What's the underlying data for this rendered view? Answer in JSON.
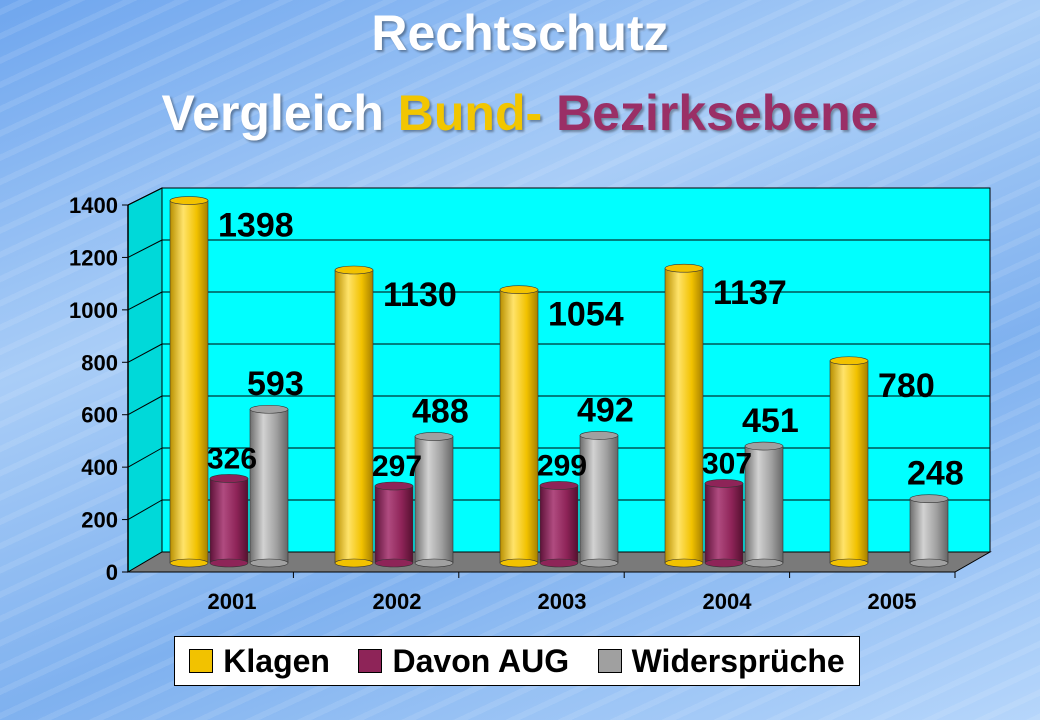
{
  "title": {
    "line1": "Rechtschutz",
    "line2": [
      {
        "text": "Vergleich ",
        "color": "#ffffff"
      },
      {
        "text": "Bund-",
        "color": "#f2c600"
      },
      {
        "text": " Bezirksebene",
        "color": "#9a2f66"
      }
    ]
  },
  "chart_data": {
    "type": "bar",
    "categories": [
      "2001",
      "2002",
      "2003",
      "2004",
      "2005"
    ],
    "series": [
      {
        "name": "Klagen",
        "values": [
          1398,
          1130,
          1054,
          1137,
          780
        ],
        "color": "#f2c200"
      },
      {
        "name": "Davon AUG",
        "values": [
          326,
          297,
          299,
          307,
          null
        ],
        "color": "#8e2458"
      },
      {
        "name": "Widersprüche",
        "values": [
          593,
          488,
          492,
          451,
          248
        ],
        "color": "#a0a0a0"
      }
    ],
    "y_ticks": [
      0,
      200,
      400,
      600,
      800,
      1000,
      1200,
      1400
    ],
    "ylim": [
      0,
      1400
    ],
    "grid": true,
    "legend_position": "bottom",
    "plot_background": "#00ffff"
  }
}
